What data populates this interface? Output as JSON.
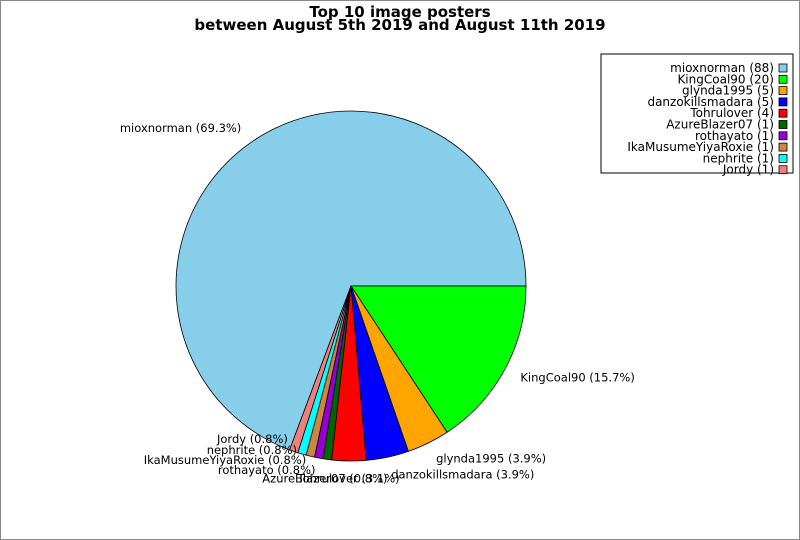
{
  "chart_data": {
    "type": "pie",
    "title": "Top 10 image posters",
    "subtitle": "between August 5th 2019 and August 11th 2019",
    "legend_position": "top-right",
    "slices": [
      {
        "name": "mioxnorman",
        "value": 88,
        "percent_label": "mioxnorman (69.3%)",
        "legend_label": "mioxnorman (88)",
        "color": "#87ceeb"
      },
      {
        "name": "KingCoal90",
        "value": 20,
        "percent_label": "KingCoal90 (15.7%)",
        "legend_label": "KingCoal90 (20)",
        "color": "#00ff00"
      },
      {
        "name": "glynda1995",
        "value": 5,
        "percent_label": "glynda1995 (3.9%)",
        "legend_label": "glynda1995 (5)",
        "color": "#ffa500"
      },
      {
        "name": "danzokillsmadara",
        "value": 5,
        "percent_label": "danzokillsmadara (3.9%)",
        "legend_label": "danzokillsmadara (5)",
        "color": "#0000ff"
      },
      {
        "name": "Tohrulover",
        "value": 4,
        "percent_label": "Tohrulover (3.1%)",
        "legend_label": "Tohrulover (4)",
        "color": "#ff0000"
      },
      {
        "name": "AzureBlazer07",
        "value": 1,
        "percent_label": "AzureBlazer07 (0.8%)",
        "legend_label": "AzureBlazer07 (1)",
        "color": "#006400"
      },
      {
        "name": "rothayato",
        "value": 1,
        "percent_label": "rothayato (0.8%)",
        "legend_label": "rothayato (1)",
        "color": "#9400d3"
      },
      {
        "name": "IkaMusumeYiyaRoxie",
        "value": 1,
        "percent_label": "IkaMusumeYiyaRoxie (0.8%)",
        "legend_label": "IkaMusumeYiyaRoxie (1)",
        "color": "#cd853f"
      },
      {
        "name": "nephrite",
        "value": 1,
        "percent_label": "nephrite (0.8%)",
        "legend_label": "nephrite (1)",
        "color": "#00ffff"
      },
      {
        "name": "Jordy",
        "value": 1,
        "percent_label": "Jordy (0.8%)",
        "legend_label": "Jordy (1)",
        "color": "#f08080"
      }
    ]
  }
}
